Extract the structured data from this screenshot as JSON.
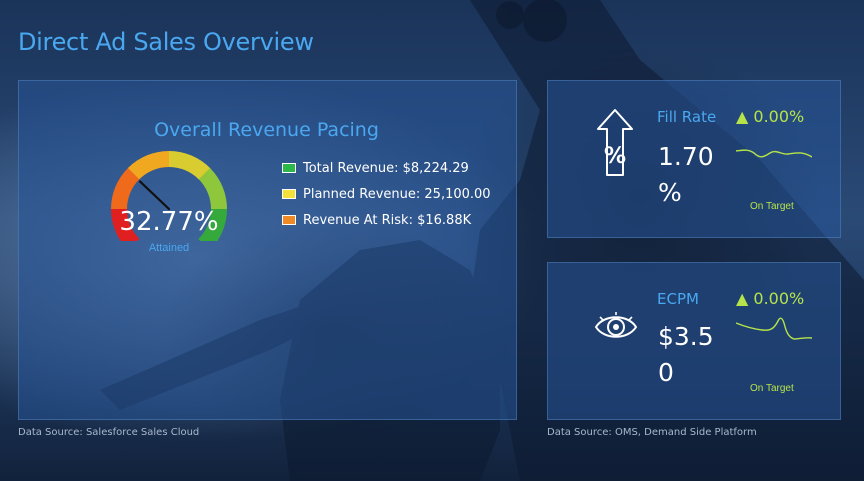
{
  "dashboard": {
    "title": "Direct Ad Sales Overview"
  },
  "pacing": {
    "title": "Overall Revenue Pacing",
    "gauge_value": "32.77%",
    "gauge_fraction": 0.3277,
    "gauge_label": "Attained",
    "gauge_colors": [
      "#e02020",
      "#f06a1c",
      "#f0a820",
      "#d8cc30",
      "#8ec63c",
      "#36a93c"
    ],
    "legend": [
      {
        "label": "Total Revenue: $8,224.29",
        "color": "#2db84a"
      },
      {
        "label": "Planned Revenue: 25,100.00",
        "color": "#f2e23a"
      },
      {
        "label": "Revenue At Risk: $16.88K",
        "color": "#f08a24"
      }
    ],
    "source": "Data Source: Salesforce Sales Cloud"
  },
  "fill_rate": {
    "name": "Fill Rate",
    "icon": "arrow-up-percent-icon",
    "value": "1.70 %",
    "change": "0.00%",
    "change_icon": "triangle-up-icon",
    "status": "On Target",
    "accent": "#b6e34a"
  },
  "ecpm": {
    "name": "ECPM",
    "icon": "eye-icon",
    "value": "$3.50",
    "change": "0.00%",
    "change_icon": "triangle-up-icon",
    "status": "On Target",
    "accent": "#b6e34a"
  },
  "kpi_source": "Data Source: OMS, Demand Side Platform"
}
